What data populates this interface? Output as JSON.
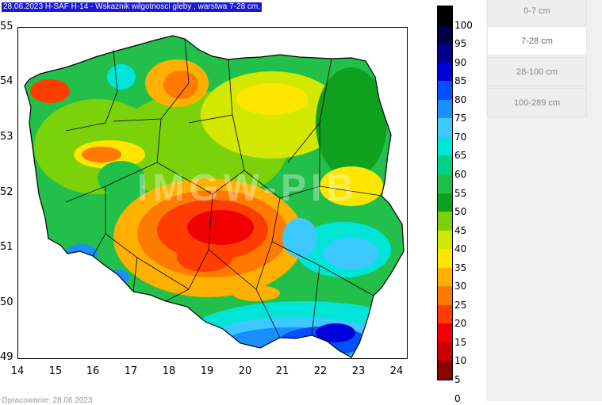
{
  "map": {
    "title": "28.06.2023 H-SAF H-14 - Wskaznik wilgotnosci gleby , warstwa 7-28 cm.",
    "watermark": "IMGW-PIB",
    "footer": "Opracowanie: 28.06.2023",
    "lat_labels": [
      "55",
      "54",
      "53",
      "52",
      "51",
      "50",
      "49"
    ],
    "lon_labels": [
      "14",
      "15",
      "16",
      "17",
      "18",
      "19",
      "20",
      "21",
      "22",
      "23",
      "24"
    ]
  },
  "colorbar": {
    "labels": [
      "100",
      "95",
      "90",
      "85",
      "80",
      "75",
      "70",
      "65",
      "60",
      "55",
      "50",
      "45",
      "40",
      "35",
      "30",
      "25",
      "20",
      "15",
      "10",
      "5",
      "0"
    ],
    "colors": [
      "#000000",
      "#000040",
      "#00008b",
      "#0000dd",
      "#0050ff",
      "#1a8fff",
      "#3dc8ff",
      "#00e5d8",
      "#00d28a",
      "#22c04a",
      "#0fa020",
      "#7cd20a",
      "#d2e800",
      "#ffe600",
      "#ffb000",
      "#ff7a00",
      "#ff3d00",
      "#f00000",
      "#cc0000",
      "#8b0000"
    ]
  },
  "sidebar": {
    "tabs": [
      {
        "label": "0-7 cm",
        "active": false
      },
      {
        "label": "7-28 cm",
        "active": true
      },
      {
        "label": "28-100 cm",
        "active": false
      },
      {
        "label": "100-289 cm",
        "active": false
      }
    ]
  }
}
